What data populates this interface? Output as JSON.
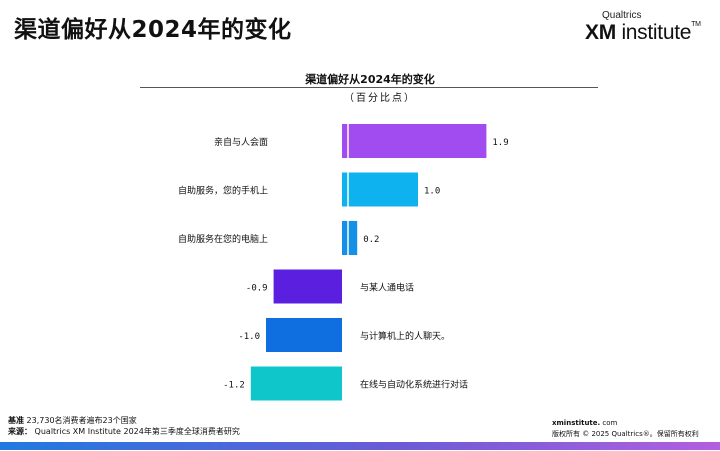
{
  "header": {
    "title": "渠道偏好从2024年的变化",
    "logo_top": "Qualtrics",
    "logo_xm": "XM",
    "logo_rest": " institute",
    "logo_tm": "TM"
  },
  "chart_data": {
    "type": "bar",
    "orientation": "horizontal",
    "title": "渠道偏好从2024年的变化",
    "subtitle": "（百分比点）",
    "categories": [
      "亲自与人会面",
      "自助服务，您的手机上",
      "自助服务在您的电脑上",
      "与某人通电话",
      "与计算机上的人聊天。",
      "在线与自动化系统进行对话"
    ],
    "values": [
      1.9,
      1.0,
      0.2,
      -0.9,
      -1.0,
      -1.2
    ],
    "value_labels": [
      "1.9",
      "1.0",
      "0.2",
      "-0.9",
      "-1.0",
      "-1.2"
    ],
    "colors": [
      "#a14cf0",
      "#0eb2ee",
      "#1590e8",
      "#5b1fe0",
      "#0f6fe0",
      "#0fc7ca"
    ],
    "xlim": [
      -1.2,
      1.9
    ],
    "grid": false,
    "legend": "none"
  },
  "footer": {
    "base_label": "基准",
    "base_text": "23,730名消费者遍布23个国家",
    "source_label": "来源：",
    "source_text": "Qualtrics XM Institute 2024年第三季度全球消费者研究",
    "site": "xminstitute.",
    "site_tail": " com",
    "copyright": "版权所有 © 2025 Qualtrics®。保留所有权利",
    "trailing_mark": "。"
  }
}
